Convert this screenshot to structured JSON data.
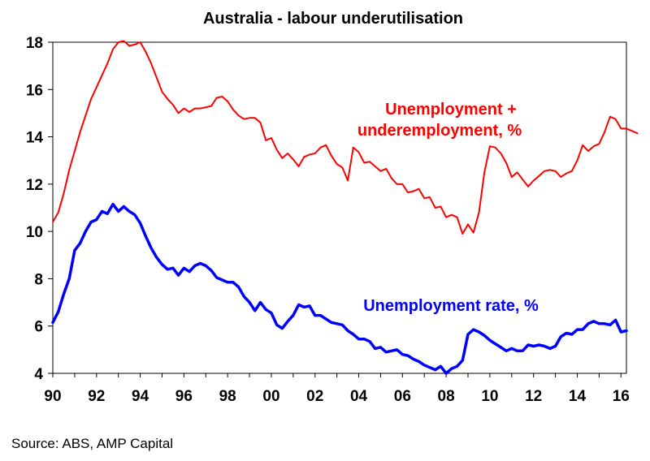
{
  "chart_data": {
    "type": "line",
    "title": "Australia - labour underutilisation",
    "xlabel": "",
    "ylabel": "",
    "xlim": [
      1990,
      2016.25
    ],
    "ylim": [
      4,
      18
    ],
    "x_ticks": [
      {
        "value": 1990,
        "label": "90"
      },
      {
        "value": 1992,
        "label": "92"
      },
      {
        "value": 1994,
        "label": "94"
      },
      {
        "value": 1996,
        "label": "96"
      },
      {
        "value": 1998,
        "label": "98"
      },
      {
        "value": 2000,
        "label": "00"
      },
      {
        "value": 2002,
        "label": "02"
      },
      {
        "value": 2004,
        "label": "04"
      },
      {
        "value": 2006,
        "label": "06"
      },
      {
        "value": 2008,
        "label": "08"
      },
      {
        "value": 2010,
        "label": "10"
      },
      {
        "value": 2012,
        "label": "12"
      },
      {
        "value": 2014,
        "label": "14"
      },
      {
        "value": 2016,
        "label": "16"
      }
    ],
    "y_ticks": [
      4,
      6,
      8,
      10,
      12,
      14,
      16,
      18
    ],
    "grid": false,
    "series": [
      {
        "name": "Unemployment + underemployment, %",
        "label_lines": [
          "Unemployment +",
          "underemployment, %"
        ],
        "color": "#ff0000",
        "points": [
          [
            1990.0,
            10.4
          ],
          [
            1990.25,
            10.8
          ],
          [
            1990.5,
            11.6
          ],
          [
            1990.75,
            12.6
          ],
          [
            1991.0,
            13.4
          ],
          [
            1991.25,
            14.2
          ],
          [
            1991.5,
            14.9
          ],
          [
            1991.75,
            15.6
          ],
          [
            1992.0,
            16.1
          ],
          [
            1992.25,
            16.6
          ],
          [
            1992.5,
            17.1
          ],
          [
            1992.75,
            17.7
          ],
          [
            1993.0,
            18.0
          ],
          [
            1993.25,
            18.05
          ],
          [
            1993.5,
            17.85
          ],
          [
            1993.75,
            17.9
          ],
          [
            1994.0,
            18.0
          ],
          [
            1994.25,
            17.6
          ],
          [
            1994.5,
            17.1
          ],
          [
            1994.75,
            16.5
          ],
          [
            1995.0,
            15.9
          ],
          [
            1995.25,
            15.6
          ],
          [
            1995.5,
            15.35
          ],
          [
            1995.75,
            15.0
          ],
          [
            1996.0,
            15.2
          ],
          [
            1996.25,
            15.05
          ],
          [
            1996.5,
            15.2
          ],
          [
            1996.75,
            15.2
          ],
          [
            1997.0,
            15.25
          ],
          [
            1997.25,
            15.3
          ],
          [
            1997.5,
            15.65
          ],
          [
            1997.75,
            15.7
          ],
          [
            1998.0,
            15.5
          ],
          [
            1998.25,
            15.15
          ],
          [
            1998.5,
            14.9
          ],
          [
            1998.75,
            14.75
          ],
          [
            1999.0,
            14.8
          ],
          [
            1999.25,
            14.8
          ],
          [
            1999.5,
            14.6
          ],
          [
            1999.75,
            13.85
          ],
          [
            2000.0,
            13.95
          ],
          [
            2000.25,
            13.45
          ],
          [
            2000.5,
            13.1
          ],
          [
            2000.75,
            13.3
          ],
          [
            2001.0,
            13.05
          ],
          [
            2001.25,
            12.75
          ],
          [
            2001.5,
            13.15
          ],
          [
            2001.75,
            13.25
          ],
          [
            2002.0,
            13.3
          ],
          [
            2002.25,
            13.55
          ],
          [
            2002.5,
            13.65
          ],
          [
            2002.75,
            13.2
          ],
          [
            2003.0,
            12.85
          ],
          [
            2003.25,
            12.7
          ],
          [
            2003.5,
            12.15
          ],
          [
            2003.75,
            13.55
          ],
          [
            2004.0,
            13.35
          ],
          [
            2004.25,
            12.9
          ],
          [
            2004.5,
            12.95
          ],
          [
            2004.75,
            12.75
          ],
          [
            2005.0,
            12.55
          ],
          [
            2005.25,
            12.65
          ],
          [
            2005.5,
            12.25
          ],
          [
            2005.75,
            12.0
          ],
          [
            2006.0,
            12.0
          ],
          [
            2006.25,
            11.65
          ],
          [
            2006.5,
            11.7
          ],
          [
            2006.75,
            11.8
          ],
          [
            2007.0,
            11.4
          ],
          [
            2007.25,
            11.45
          ],
          [
            2007.5,
            11.0
          ],
          [
            2007.75,
            11.05
          ],
          [
            2008.0,
            10.6
          ],
          [
            2008.25,
            10.7
          ],
          [
            2008.5,
            10.6
          ],
          [
            2008.75,
            9.9
          ],
          [
            2009.0,
            10.3
          ],
          [
            2009.25,
            9.95
          ],
          [
            2009.5,
            10.8
          ],
          [
            2009.75,
            12.5
          ],
          [
            2010.0,
            13.6
          ],
          [
            2010.25,
            13.55
          ],
          [
            2010.5,
            13.3
          ],
          [
            2010.75,
            12.9
          ],
          [
            2011.0,
            12.3
          ],
          [
            2011.25,
            12.5
          ],
          [
            2011.5,
            12.2
          ],
          [
            2011.75,
            11.9
          ],
          [
            2012.0,
            12.15
          ],
          [
            2012.25,
            12.35
          ],
          [
            2012.5,
            12.55
          ],
          [
            2012.75,
            12.6
          ],
          [
            2013.0,
            12.55
          ],
          [
            2013.25,
            12.3
          ],
          [
            2013.5,
            12.45
          ],
          [
            2013.75,
            12.55
          ],
          [
            2014.0,
            13.0
          ],
          [
            2014.25,
            13.65
          ],
          [
            2014.5,
            13.4
          ],
          [
            2014.75,
            13.6
          ],
          [
            2015.0,
            13.7
          ],
          [
            2015.25,
            14.2
          ],
          [
            2015.5,
            14.85
          ],
          [
            2015.75,
            14.75
          ],
          [
            2016.0,
            14.35
          ],
          [
            2016.25,
            14.35
          ],
          [
            2016.5,
            14.25
          ],
          [
            2016.75,
            14.15
          ]
        ]
      },
      {
        "name": "Unemployment rate, %",
        "label_lines": [
          "Unemployment  rate, %"
        ],
        "color": "#0000ff",
        "points": [
          [
            1990.0,
            6.15
          ],
          [
            1990.25,
            6.6
          ],
          [
            1990.5,
            7.35
          ],
          [
            1990.75,
            8.0
          ],
          [
            1991.0,
            9.2
          ],
          [
            1991.25,
            9.5
          ],
          [
            1991.5,
            10.0
          ],
          [
            1991.75,
            10.4
          ],
          [
            1992.0,
            10.5
          ],
          [
            1992.25,
            10.85
          ],
          [
            1992.5,
            10.75
          ],
          [
            1992.75,
            11.15
          ],
          [
            1993.0,
            10.85
          ],
          [
            1993.25,
            11.05
          ],
          [
            1993.5,
            10.85
          ],
          [
            1993.75,
            10.7
          ],
          [
            1994.0,
            10.35
          ],
          [
            1994.25,
            9.8
          ],
          [
            1994.5,
            9.3
          ],
          [
            1994.75,
            8.9
          ],
          [
            1995.0,
            8.6
          ],
          [
            1995.25,
            8.4
          ],
          [
            1995.5,
            8.45
          ],
          [
            1995.75,
            8.15
          ],
          [
            1996.0,
            8.45
          ],
          [
            1996.25,
            8.3
          ],
          [
            1996.5,
            8.55
          ],
          [
            1996.75,
            8.65
          ],
          [
            1997.0,
            8.55
          ],
          [
            1997.25,
            8.35
          ],
          [
            1997.5,
            8.05
          ],
          [
            1997.75,
            7.95
          ],
          [
            1998.0,
            7.85
          ],
          [
            1998.25,
            7.85
          ],
          [
            1998.5,
            7.65
          ],
          [
            1998.75,
            7.25
          ],
          [
            1999.0,
            7.0
          ],
          [
            1999.25,
            6.65
          ],
          [
            1999.5,
            7.0
          ],
          [
            1999.75,
            6.7
          ],
          [
            2000.0,
            6.55
          ],
          [
            2000.25,
            6.05
          ],
          [
            2000.5,
            5.9
          ],
          [
            2000.75,
            6.2
          ],
          [
            2001.0,
            6.45
          ],
          [
            2001.25,
            6.9
          ],
          [
            2001.5,
            6.8
          ],
          [
            2001.75,
            6.85
          ],
          [
            2002.0,
            6.45
          ],
          [
            2002.25,
            6.45
          ],
          [
            2002.5,
            6.3
          ],
          [
            2002.75,
            6.15
          ],
          [
            2003.0,
            6.1
          ],
          [
            2003.25,
            6.05
          ],
          [
            2003.5,
            5.8
          ],
          [
            2003.75,
            5.65
          ],
          [
            2004.0,
            5.45
          ],
          [
            2004.25,
            5.45
          ],
          [
            2004.5,
            5.35
          ],
          [
            2004.75,
            5.05
          ],
          [
            2005.0,
            5.1
          ],
          [
            2005.25,
            4.9
          ],
          [
            2005.5,
            4.95
          ],
          [
            2005.75,
            5.0
          ],
          [
            2006.0,
            4.8
          ],
          [
            2006.25,
            4.75
          ],
          [
            2006.5,
            4.6
          ],
          [
            2006.75,
            4.5
          ],
          [
            2007.0,
            4.35
          ],
          [
            2007.25,
            4.25
          ],
          [
            2007.5,
            4.15
          ],
          [
            2007.75,
            4.3
          ],
          [
            2008.0,
            4.0
          ],
          [
            2008.25,
            4.2
          ],
          [
            2008.5,
            4.3
          ],
          [
            2008.75,
            4.55
          ],
          [
            2009.0,
            5.65
          ],
          [
            2009.25,
            5.85
          ],
          [
            2009.5,
            5.75
          ],
          [
            2009.75,
            5.6
          ],
          [
            2010.0,
            5.4
          ],
          [
            2010.25,
            5.25
          ],
          [
            2010.5,
            5.1
          ],
          [
            2010.75,
            4.95
          ],
          [
            2011.0,
            5.05
          ],
          [
            2011.25,
            4.95
          ],
          [
            2011.5,
            4.95
          ],
          [
            2011.75,
            5.2
          ],
          [
            2012.0,
            5.15
          ],
          [
            2012.25,
            5.2
          ],
          [
            2012.5,
            5.15
          ],
          [
            2012.75,
            5.05
          ],
          [
            2013.0,
            5.15
          ],
          [
            2013.25,
            5.55
          ],
          [
            2013.5,
            5.7
          ],
          [
            2013.75,
            5.65
          ],
          [
            2014.0,
            5.85
          ],
          [
            2014.25,
            5.85
          ],
          [
            2014.5,
            6.1
          ],
          [
            2014.75,
            6.2
          ],
          [
            2015.0,
            6.1
          ],
          [
            2015.25,
            6.1
          ],
          [
            2015.5,
            6.05
          ],
          [
            2015.75,
            6.25
          ],
          [
            2016.0,
            5.75
          ],
          [
            2016.25,
            5.8
          ]
        ]
      }
    ]
  },
  "source": "Source: ABS, AMP Capital"
}
